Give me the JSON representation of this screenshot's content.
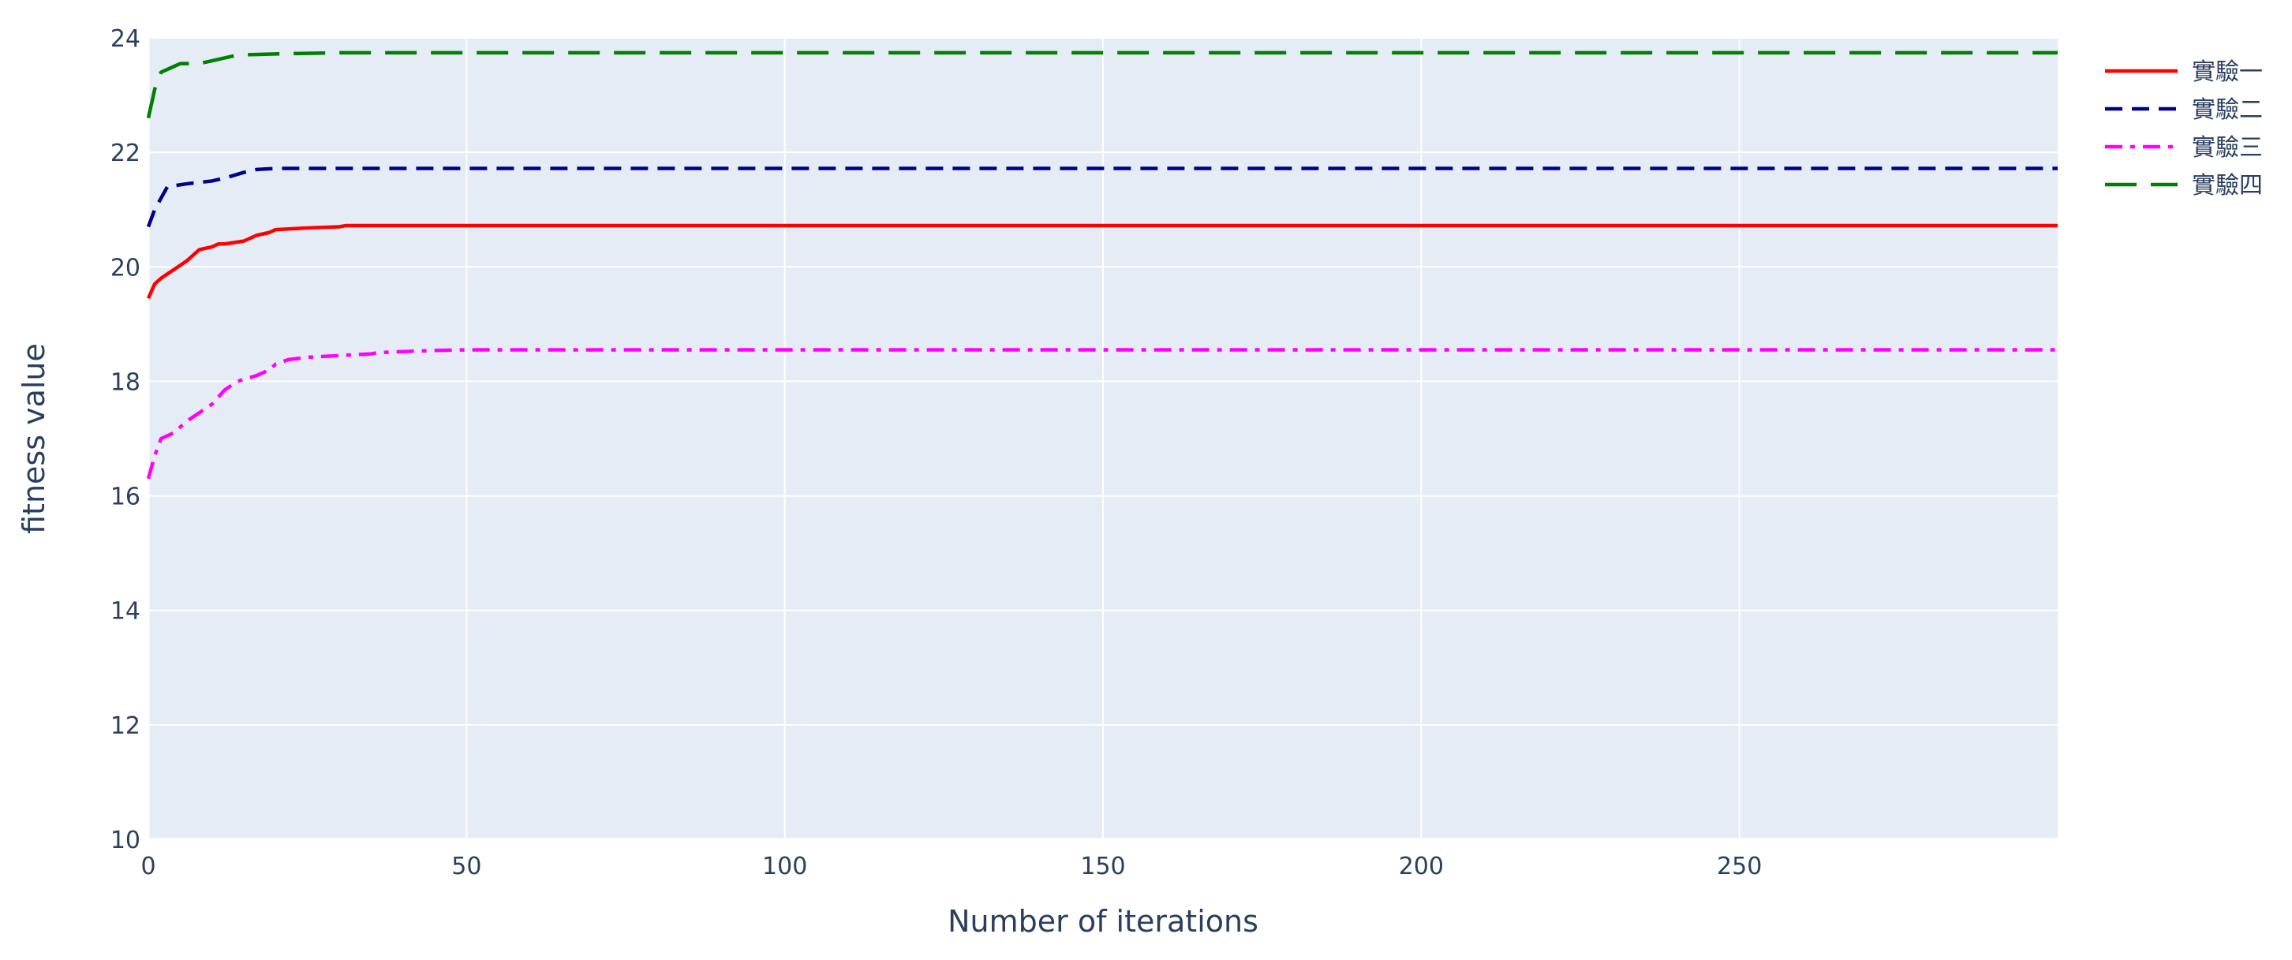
{
  "chart_data": {
    "type": "line",
    "title": "",
    "xlabel": "Number of iterations",
    "ylabel": "fitness value",
    "xlim": [
      0,
      300
    ],
    "ylim": [
      10,
      24
    ],
    "xticks": [
      0,
      50,
      100,
      150,
      200,
      250
    ],
    "yticks": [
      10,
      12,
      14,
      16,
      18,
      20,
      22,
      24
    ],
    "grid": true,
    "legend_position": "top-right",
    "background": "#e5ecf6",
    "series": [
      {
        "name": "實驗一",
        "color": "#ff0000",
        "dash": "solid",
        "x": [
          0,
          1,
          2,
          4,
          6,
          8,
          10,
          11,
          12,
          15,
          17,
          19,
          20,
          25,
          30,
          31,
          300
        ],
        "y": [
          19.45,
          19.7,
          19.8,
          19.95,
          20.1,
          20.3,
          20.35,
          20.4,
          20.4,
          20.45,
          20.55,
          20.6,
          20.65,
          20.68,
          20.7,
          20.72,
          20.72
        ]
      },
      {
        "name": "實驗二",
        "color": "#00008b",
        "dash": "dash",
        "x": [
          0,
          1,
          2,
          3,
          6,
          10,
          12,
          15,
          17,
          20,
          300
        ],
        "y": [
          20.7,
          21.0,
          21.2,
          21.4,
          21.45,
          21.5,
          21.55,
          21.65,
          21.7,
          21.72,
          21.72
        ]
      },
      {
        "name": "實驗三",
        "color": "#ff00ff",
        "dash": "dashdot",
        "x": [
          0,
          1,
          2,
          4,
          6,
          8,
          10,
          12,
          14,
          17,
          19,
          20,
          22,
          25,
          30,
          35,
          36,
          40,
          45,
          50,
          300
        ],
        "y": [
          16.3,
          16.7,
          17.0,
          17.1,
          17.3,
          17.45,
          17.6,
          17.85,
          18.0,
          18.1,
          18.2,
          18.3,
          18.38,
          18.42,
          18.45,
          18.48,
          18.5,
          18.52,
          18.54,
          18.55,
          18.55
        ]
      },
      {
        "name": "實驗四",
        "color": "#008000",
        "dash": "longdash",
        "x": [
          0,
          1,
          2,
          5,
          8,
          10,
          12,
          14,
          20,
          30,
          300
        ],
        "y": [
          22.6,
          23.1,
          23.4,
          23.55,
          23.55,
          23.6,
          23.65,
          23.7,
          23.72,
          23.74,
          23.74
        ]
      }
    ]
  }
}
